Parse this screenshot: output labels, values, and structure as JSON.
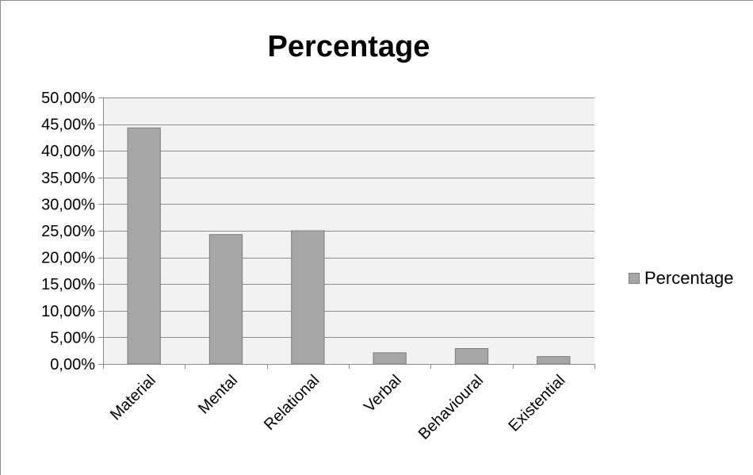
{
  "chart_data": {
    "type": "bar",
    "title": "Percentage",
    "categories": [
      "Material",
      "Mental",
      "Relational",
      "Verbal",
      "Behavioural",
      "Existential"
    ],
    "series": [
      {
        "name": "Percentage",
        "values": [
          44.3,
          24.3,
          25.0,
          2.1,
          2.9,
          1.4
        ]
      }
    ],
    "ylim": [
      0,
      50
    ],
    "ytick_values": [
      0,
      5,
      10,
      15,
      20,
      25,
      30,
      35,
      40,
      45,
      50
    ],
    "ytick_labels": [
      "0,00%",
      "5,00%",
      "10,00%",
      "15,00%",
      "20,00%",
      "25,00%",
      "30,00%",
      "35,00%",
      "40,00%",
      "45,00%",
      "50,00%"
    ],
    "xlabel": "",
    "ylabel": "",
    "grid": true,
    "legend_position": "right",
    "colors": {
      "bar_fill": "#a6a6a6",
      "bar_stroke": "#7f7f7f",
      "plot_background": "#f2f2f2",
      "gridline": "#8c8c8c",
      "axis": "#8c8c8c"
    }
  }
}
